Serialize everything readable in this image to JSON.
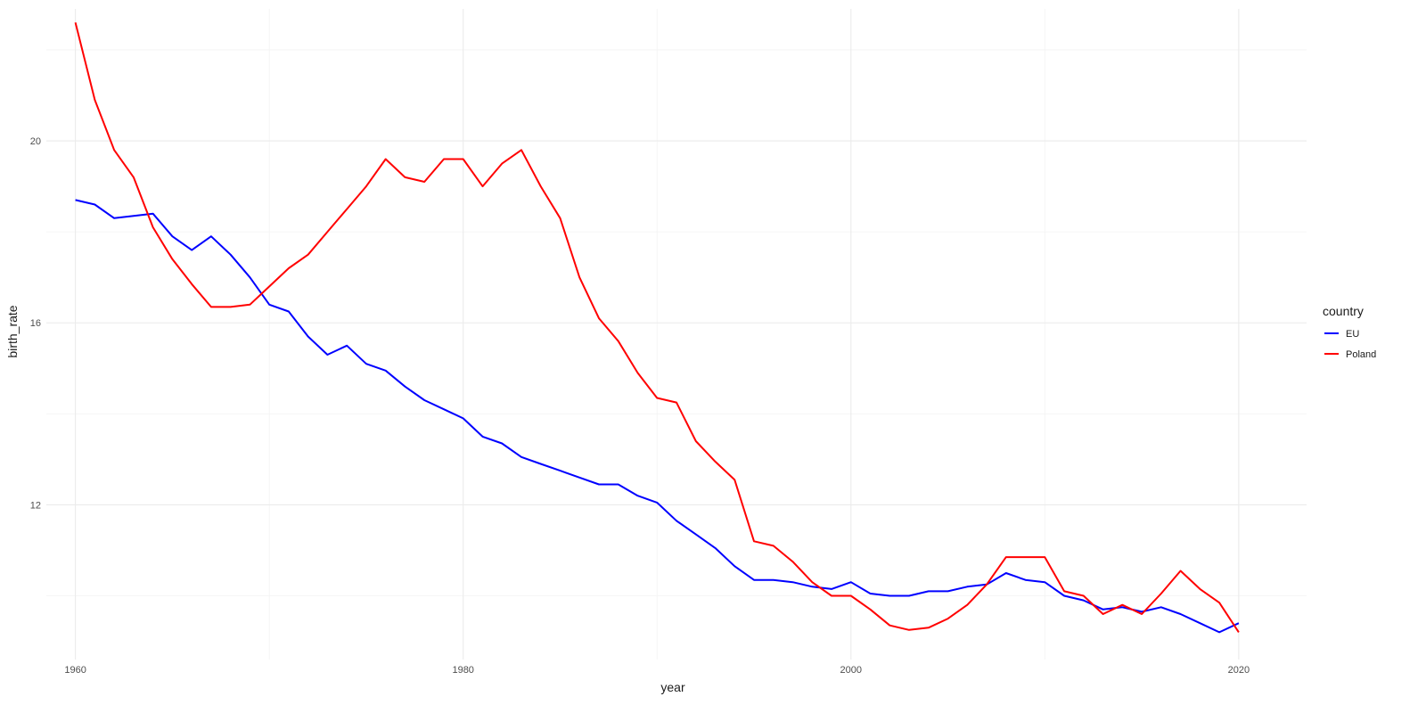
{
  "chart_data": {
    "type": "line",
    "title": "",
    "xlabel": "year",
    "ylabel": "birth_rate",
    "xlim": [
      1958.5,
      2023.5
    ],
    "ylim": [
      8.6,
      22.9
    ],
    "x_ticks": [
      1960,
      1980,
      2000,
      2020
    ],
    "y_ticks": [
      12,
      16,
      20
    ],
    "grid": true,
    "legend": {
      "title": "country",
      "position": "right"
    },
    "x": [
      1960,
      1961,
      1962,
      1963,
      1964,
      1965,
      1966,
      1967,
      1968,
      1969,
      1970,
      1971,
      1972,
      1973,
      1974,
      1975,
      1976,
      1977,
      1978,
      1979,
      1980,
      1981,
      1982,
      1983,
      1984,
      1985,
      1986,
      1987,
      1988,
      1989,
      1990,
      1991,
      1992,
      1993,
      1994,
      1995,
      1996,
      1997,
      1998,
      1999,
      2000,
      2001,
      2002,
      2003,
      2004,
      2005,
      2006,
      2007,
      2008,
      2009,
      2010,
      2011,
      2012,
      2013,
      2014,
      2015,
      2016,
      2017,
      2018,
      2019,
      2020
    ],
    "series": [
      {
        "name": "EU",
        "color": "#0000ff",
        "values": [
          18.7,
          18.6,
          18.3,
          18.35,
          18.4,
          17.9,
          17.6,
          17.9,
          17.5,
          17.0,
          16.4,
          16.25,
          15.7,
          15.3,
          15.5,
          15.1,
          14.95,
          14.6,
          14.3,
          14.1,
          13.9,
          13.5,
          13.35,
          13.05,
          12.9,
          12.75,
          12.6,
          12.45,
          12.45,
          12.2,
          12.05,
          11.65,
          11.35,
          11.05,
          10.65,
          10.35,
          10.35,
          10.3,
          10.2,
          10.15,
          10.3,
          10.05,
          10.0,
          10.0,
          10.1,
          10.1,
          10.2,
          10.25,
          10.5,
          10.35,
          10.3,
          10.0,
          9.9,
          9.7,
          9.75,
          9.65,
          9.75,
          9.6,
          9.4,
          9.2,
          9.4
        ]
      },
      {
        "name": "Poland",
        "color": "#ff0000",
        "values": [
          22.6,
          20.9,
          19.8,
          19.2,
          18.1,
          17.4,
          16.85,
          16.35,
          16.35,
          16.4,
          16.8,
          17.2,
          17.5,
          18.0,
          18.5,
          19.0,
          19.6,
          19.2,
          19.1,
          19.6,
          19.6,
          19.0,
          19.5,
          19.8,
          19.0,
          18.3,
          17.0,
          16.1,
          15.6,
          14.9,
          14.35,
          14.25,
          13.4,
          12.95,
          12.55,
          11.2,
          11.1,
          10.75,
          10.3,
          10.0,
          10.0,
          9.7,
          9.35,
          9.25,
          9.3,
          9.5,
          9.8,
          10.25,
          10.85,
          10.85,
          10.85,
          10.1,
          10.0,
          9.6,
          9.8,
          9.6,
          10.05,
          10.55,
          10.15,
          9.85,
          9.2
        ]
      }
    ]
  }
}
